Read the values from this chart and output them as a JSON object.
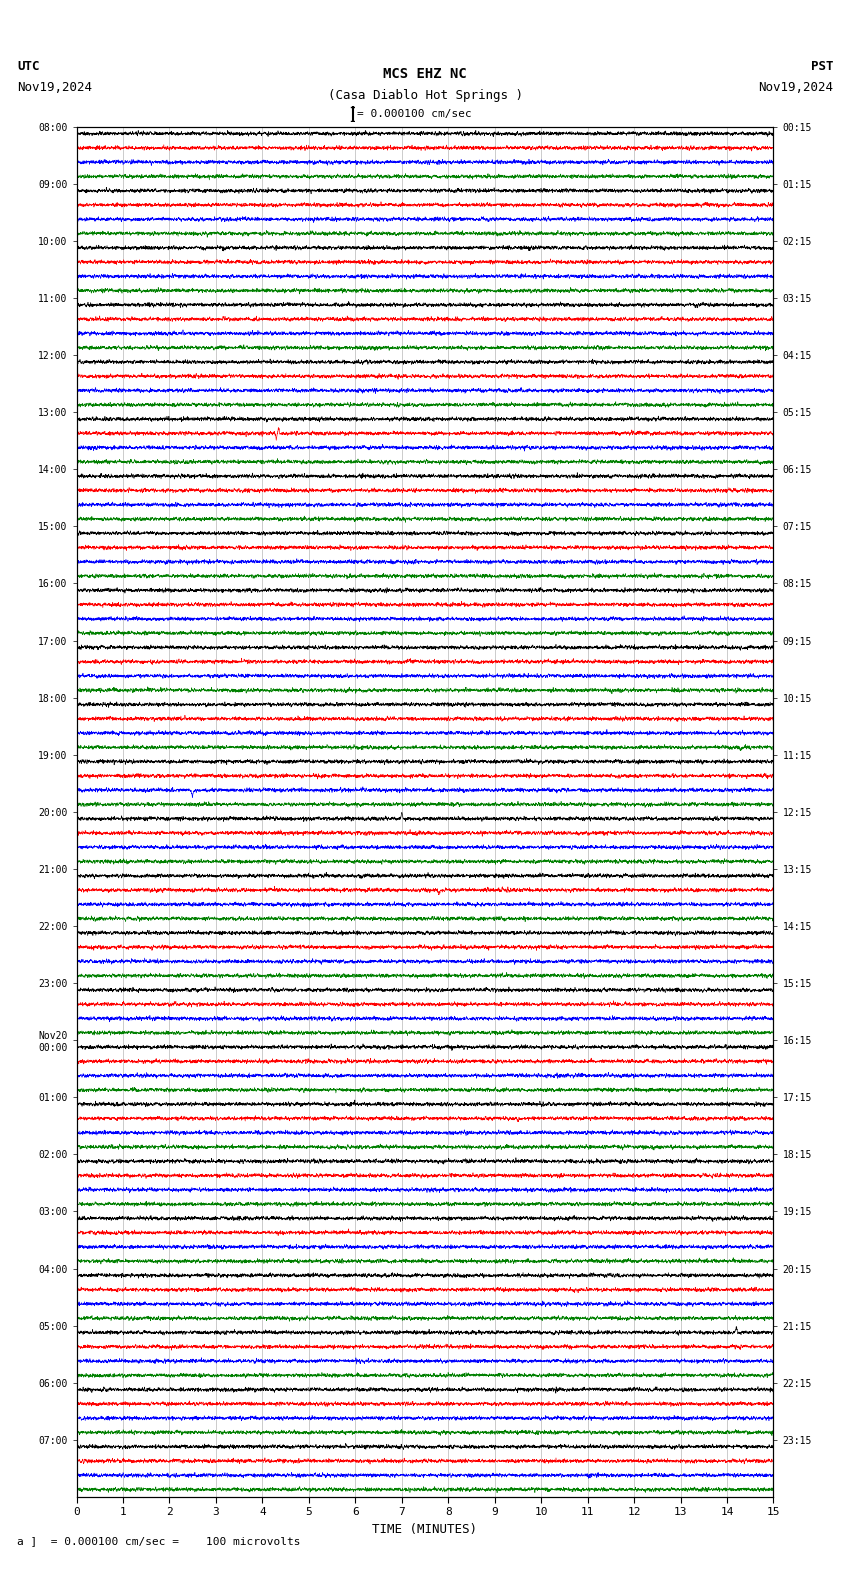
{
  "title_line1": "MCS EHZ NC",
  "title_line2": "(Casa Diablo Hot Springs )",
  "scale_text": "= 0.000100 cm/sec",
  "utc_label": "UTC",
  "pst_label": "PST",
  "date_left": "Nov19,2024",
  "date_right": "Nov19,2024",
  "xlabel": "TIME (MINUTES)",
  "bottom_label": "= 0.000100 cm/sec =    100 microvolts",
  "left_times": [
    "08:00",
    "09:00",
    "10:00",
    "11:00",
    "12:00",
    "13:00",
    "14:00",
    "15:00",
    "16:00",
    "17:00",
    "18:00",
    "19:00",
    "20:00",
    "21:00",
    "22:00",
    "23:00",
    "Nov20\n00:00",
    "01:00",
    "02:00",
    "03:00",
    "04:00",
    "05:00",
    "06:00",
    "07:00"
  ],
  "right_times": [
    "00:15",
    "01:15",
    "02:15",
    "03:15",
    "04:15",
    "05:15",
    "06:15",
    "07:15",
    "08:15",
    "09:15",
    "10:15",
    "11:15",
    "12:15",
    "13:15",
    "14:15",
    "15:15",
    "16:15",
    "17:15",
    "18:15",
    "19:15",
    "20:15",
    "21:15",
    "22:15",
    "23:15"
  ],
  "n_rows": 24,
  "n_traces_per_row": 4,
  "colors": [
    "black",
    "red",
    "blue",
    "green"
  ],
  "xmin": 0,
  "xmax": 15,
  "bg_color": "#ffffff",
  "grid_color": "#999999",
  "trace_amplitude": 0.018,
  "special_spikes": [
    {
      "row": 5,
      "trace": 0,
      "x": 4.1,
      "amp": 0.04,
      "color": "red"
    },
    {
      "row": 5,
      "trace": 1,
      "x": 4.3,
      "amp": 0.1,
      "color": "blue"
    },
    {
      "row": 5,
      "trace": 1,
      "x": 4.35,
      "amp": -0.08,
      "color": "blue"
    },
    {
      "row": 11,
      "trace": 2,
      "x": 2.5,
      "amp": 0.12,
      "color": "green"
    },
    {
      "row": 12,
      "trace": 0,
      "x": 7.0,
      "amp": -0.09,
      "color": "black"
    },
    {
      "row": 13,
      "trace": 1,
      "x": 7.8,
      "amp": 0.1,
      "color": "red"
    },
    {
      "row": 10,
      "trace": 3,
      "x": 14.3,
      "amp": 0.06,
      "color": "red"
    },
    {
      "row": 17,
      "trace": 1,
      "x": 9.5,
      "amp": 0.06,
      "color": "blue"
    },
    {
      "row": 21,
      "trace": 0,
      "x": 14.2,
      "amp": -0.1,
      "color": "black"
    }
  ]
}
